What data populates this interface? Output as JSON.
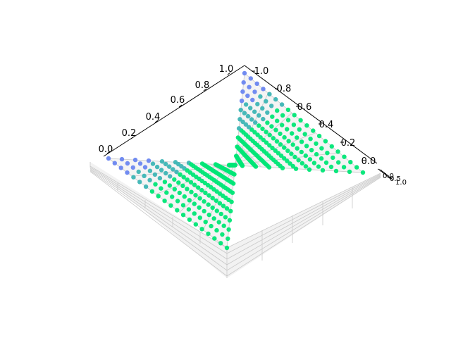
{
  "chart_data": {
    "type": "scatter",
    "projection": "3d",
    "title": "",
    "xlabel": "",
    "ylabel": "",
    "zlabel": "",
    "x_ticks": [
      "0.0",
      "0.2",
      "0.4",
      "0.6",
      "0.8",
      "1.0"
    ],
    "y_ticks": [
      "1.0",
      "0.8",
      "0.6",
      "0.4",
      "0.2",
      "0.0"
    ],
    "z_ticks": [
      "0.0",
      "0.5",
      "1.0"
    ],
    "xlim": [
      0,
      1
    ],
    "ylim": [
      0,
      1
    ],
    "zlim": [
      0,
      1
    ],
    "grid": true,
    "grid_points": 20,
    "point_rule": "z = 0 for all points; color by distance from corners",
    "colors": {
      "interior": "#00e676",
      "edge": "#3db5b5",
      "corner": "#6a86f0",
      "pane": "#f2f2f2",
      "grid": "#c8c8c8",
      "axis": "#000000"
    }
  }
}
